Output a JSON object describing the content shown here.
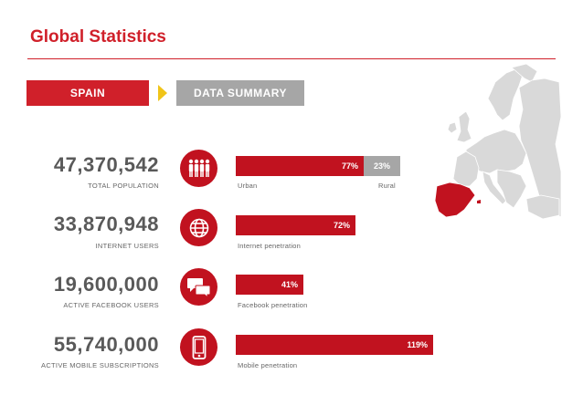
{
  "header": {
    "title": "Global Statistics"
  },
  "tabs": {
    "country": "SPAIN",
    "section": "DATA SUMMARY"
  },
  "stats": [
    {
      "value": "47,370,542",
      "label": "TOTAL POPULATION",
      "icon": "people-icon"
    },
    {
      "value": "33,870,948",
      "label": "INTERNET USERS",
      "icon": "globe-icon"
    },
    {
      "value": "19,600,000",
      "label": "ACTIVE FACEBOOK USERS",
      "icon": "chat-bubbles-icon"
    },
    {
      "value": "55,740,000",
      "label": "ACTIVE MOBILE SUBSCRIPTIONS",
      "icon": "mobile-phone-icon"
    }
  ],
  "bars": [
    {
      "percent_label": "77%",
      "percent": 77,
      "caption": "Urban",
      "secondary_label": "23%",
      "secondary_percent": 23,
      "secondary_caption": "Rural"
    },
    {
      "percent_label": "72%",
      "percent": 72,
      "caption": "Internet penetration"
    },
    {
      "percent_label": "41%",
      "percent": 41,
      "caption": "Facebook penetration"
    },
    {
      "percent_label": "119%",
      "percent": 119,
      "caption": "Mobile penetration"
    }
  ],
  "colors": {
    "accent": "#d0202a",
    "bar": "#c1121f",
    "gray": "#a6a6a6",
    "arrow": "#f0c419",
    "map_land": "#d9d9d9"
  }
}
